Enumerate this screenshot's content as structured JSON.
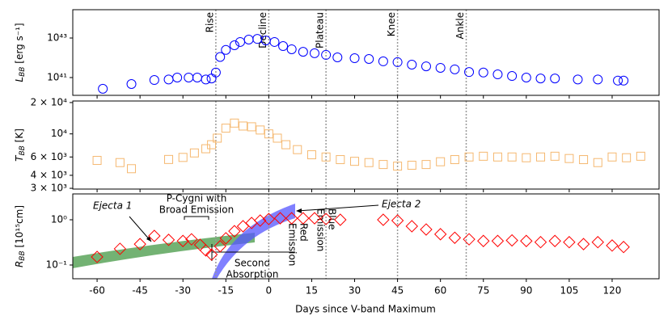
{
  "chart_data": [
    {
      "type": "scatter",
      "marker": "circle",
      "color": "#0000ff",
      "log_y": true,
      "ylabel": {
        "symbol": "L",
        "sub": "BB",
        "unit": " [erg s⁻¹]"
      },
      "xlim": [
        -68.5,
        136.4
      ],
      "ylim": [
        1.26e+40,
        2.7e+44
      ],
      "yticks": [
        {
          "value": 1e+41,
          "label": "10⁴¹"
        },
        {
          "value": 1e+43,
          "label": "10⁴³"
        }
      ],
      "x": [
        -58,
        -48,
        -40,
        -35,
        -32,
        -28,
        -25,
        -22,
        -20,
        -18.5,
        -17,
        -15,
        -12,
        -10,
        -7,
        -4,
        -1,
        2,
        5,
        8,
        12,
        16,
        20,
        24,
        30,
        35,
        40,
        45,
        50,
        55,
        60,
        65,
        70,
        75,
        80,
        85,
        90,
        95,
        100,
        108,
        115,
        122,
        124
      ],
      "values": [
        2.7e+40,
        4.7e+40,
        7.5e+40,
        8e+40,
        1e+41,
        1e+41,
        1e+41,
        8e+40,
        9e+40,
        1.8e+41,
        1.1e+42,
        2.5e+42,
        4.3e+42,
        6.3e+42,
        8.3e+42,
        9e+42,
        7.5e+42,
        6.3e+42,
        3.9e+42,
        2.7e+42,
        2e+42,
        1.7e+42,
        1.4e+42,
        1.05e+42,
        9.5e+41,
        8.7e+41,
        6.6e+41,
        6e+41,
        4.5e+41,
        3.7e+41,
        3.1e+41,
        2.6e+41,
        1.9e+41,
        1.8e+41,
        1.45e+41,
        1.2e+41,
        1e+41,
        9e+40,
        9e+40,
        8e+40,
        8e+40,
        7e+40,
        7e+40
      ],
      "phases": [
        {
          "label": "Rise",
          "x": -18.5
        },
        {
          "label": "Decline",
          "x": 0
        },
        {
          "label": "Plateau",
          "x": 20
        },
        {
          "label": "Knee",
          "x": 45
        },
        {
          "label": "Ankle",
          "x": 69
        }
      ]
    },
    {
      "type": "scatter",
      "marker": "square",
      "color": "#f5b870",
      "log_y": true,
      "ylabel": {
        "symbol": "T",
        "sub": "BB",
        "unit": " [K]"
      },
      "xlim": [
        -68.5,
        136.4
      ],
      "ylim": [
        2950,
        20700
      ],
      "yticks": [
        {
          "value": 3000,
          "label": "3 × 10³"
        },
        {
          "value": 4000,
          "label": "4 × 10³"
        },
        {
          "value": 6000,
          "label": "6 × 10³"
        },
        {
          "value": 10000,
          "label": "10⁴"
        },
        {
          "value": 20000,
          "label": "2 × 10⁴"
        }
      ],
      "x": [
        -60,
        -52,
        -48,
        -35,
        -30,
        -26,
        -22,
        -20,
        -18,
        -15,
        -12,
        -9,
        -6,
        -3,
        0,
        3,
        6,
        10,
        15,
        20,
        25,
        30,
        35,
        40,
        45,
        50,
        55,
        60,
        65,
        70,
        75,
        80,
        85,
        90,
        95,
        100,
        105,
        110,
        115,
        120,
        125,
        130
      ],
      "values": [
        5560,
        5300,
        4630,
        5680,
        5940,
        6560,
        7200,
        7870,
        9100,
        11350,
        12700,
        11900,
        11700,
        10900,
        10000,
        9100,
        7870,
        7060,
        6300,
        6000,
        5660,
        5450,
        5300,
        5080,
        4900,
        5000,
        5080,
        5400,
        5660,
        6000,
        6100,
        6000,
        6000,
        5900,
        6000,
        6100,
        5800,
        5660,
        5300,
        6000,
        5900,
        6100
      ]
    },
    {
      "type": "scatter",
      "marker": "diamond",
      "color": "#ff0000",
      "log_y": true,
      "ylabel": {
        "symbol": "R",
        "sub": "BB",
        "unit": "  [10¹⁵cm]"
      },
      "xlabel": "Days since V-band Maximum",
      "xlim": [
        -68.5,
        136.4
      ],
      "ylim": [
        0.0497,
        3.73
      ],
      "xticks": [
        -60,
        -45,
        -30,
        -15,
        0,
        15,
        30,
        45,
        60,
        75,
        90,
        105,
        120
      ],
      "yticks": [
        {
          "value": 0.1,
          "label": "10⁻¹"
        },
        {
          "value": 1,
          "label": "10⁰"
        }
      ],
      "x": [
        -60,
        -52,
        -45,
        -40,
        -35,
        -30,
        -27,
        -24,
        -22,
        -20,
        -17,
        -15,
        -12,
        -9,
        -6,
        -3,
        0,
        4,
        8,
        12,
        16,
        20,
        25,
        40,
        45,
        50,
        55,
        60,
        65,
        70,
        75,
        80,
        85,
        90,
        95,
        100,
        105,
        110,
        115,
        120,
        124
      ],
      "values": [
        0.151,
        0.228,
        0.29,
        0.44,
        0.36,
        0.34,
        0.37,
        0.28,
        0.21,
        0.17,
        0.26,
        0.39,
        0.56,
        0.72,
        0.85,
        0.96,
        1.04,
        1.08,
        1.08,
        1.08,
        1.08,
        1.04,
        1.0,
        1.0,
        0.96,
        0.72,
        0.61,
        0.48,
        0.4,
        0.37,
        0.34,
        0.34,
        0.35,
        0.34,
        0.32,
        0.34,
        0.32,
        0.29,
        0.32,
        0.27,
        0.25
      ],
      "annotations": {
        "ejecta1": "Ejecta 1",
        "ejecta2": "Ejecta 2",
        "pcygni": [
          "P-Cygni with",
          "Broad Emission"
        ],
        "second": [
          "Second",
          "Absorption"
        ],
        "red": [
          "Red",
          "Emission"
        ],
        "blue": [
          "Blue",
          "Emission"
        ]
      }
    }
  ]
}
